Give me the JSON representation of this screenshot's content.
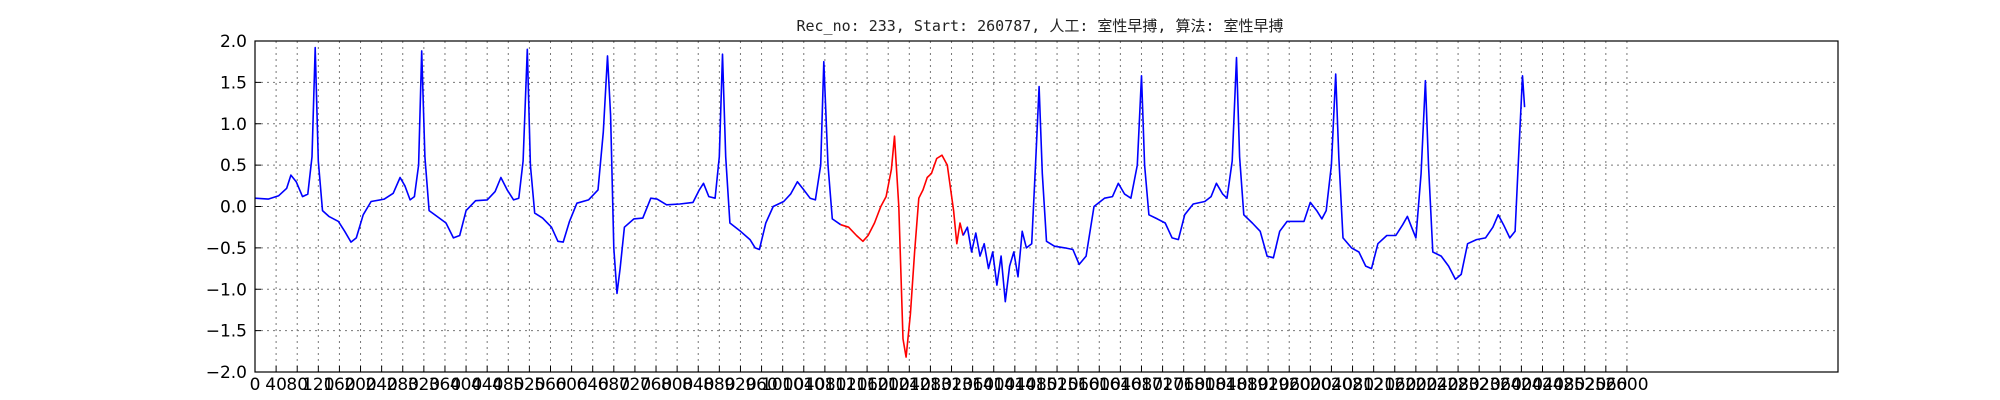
{
  "chart_data": {
    "type": "line",
    "title": "Rec_no: 233, Start: 260787, 人工: 室性早搏, 算法: 室性早搏",
    "xlabel": "",
    "ylabel": "",
    "xlim": [
      0,
      3000
    ],
    "ylim": [
      -2.0,
      2.0
    ],
    "grid": true,
    "x_tick_values": [
      0,
      40,
      80,
      120,
      160,
      200,
      240,
      280,
      320,
      360,
      400,
      440,
      480,
      520,
      560,
      600,
      640,
      680,
      720,
      760,
      800,
      840,
      880,
      920,
      960,
      1000,
      1040,
      1080,
      1120,
      1160,
      1200,
      1240,
      1280,
      1320,
      1360,
      1400,
      1440,
      1480,
      1520,
      1560,
      1600,
      1640,
      1680,
      1720,
      1760,
      1800,
      1840,
      1880,
      1920,
      1960,
      2000,
      2040,
      2080,
      2120,
      2160,
      2200,
      2240,
      2280,
      2320,
      2360,
      2400,
      2440,
      2480,
      2520,
      2560,
      2600
    ],
    "y_ticks": [
      2.0,
      1.5,
      1.0,
      0.5,
      0.0,
      -0.5,
      -1.0,
      -1.5,
      -2.0
    ],
    "y_tick_labels": [
      "2.0",
      "1.5",
      "1.0",
      "0.5",
      "0.0",
      "−0.5",
      "−1.0",
      "−1.5",
      "−2.0"
    ],
    "series": [
      {
        "color": "#0000ff",
        "points": [
          [
            0,
            0.1
          ],
          [
            25,
            0.09
          ],
          [
            45,
            0.13
          ],
          [
            60,
            0.22
          ],
          [
            68,
            0.38
          ],
          [
            78,
            0.3
          ],
          [
            90,
            0.12
          ],
          [
            100,
            0.15
          ],
          [
            108,
            0.6
          ],
          [
            114,
            1.92
          ],
          [
            120,
            0.55
          ],
          [
            128,
            -0.05
          ],
          [
            140,
            -0.12
          ],
          [
            158,
            -0.18
          ],
          [
            170,
            -0.3
          ],
          [
            182,
            -0.43
          ],
          [
            192,
            -0.38
          ],
          [
            205,
            -0.1
          ],
          [
            220,
            0.06
          ],
          [
            245,
            0.09
          ],
          [
            262,
            0.16
          ],
          [
            275,
            0.35
          ],
          [
            284,
            0.25
          ],
          [
            294,
            0.08
          ],
          [
            302,
            0.12
          ],
          [
            310,
            0.5
          ],
          [
            316,
            1.88
          ],
          [
            322,
            0.6
          ],
          [
            330,
            -0.05
          ],
          [
            345,
            -0.12
          ],
          [
            362,
            -0.2
          ],
          [
            376,
            -0.38
          ],
          [
            388,
            -0.35
          ],
          [
            400,
            -0.05
          ],
          [
            418,
            0.07
          ],
          [
            440,
            0.08
          ],
          [
            455,
            0.18
          ],
          [
            466,
            0.35
          ],
          [
            478,
            0.2
          ],
          [
            490,
            0.08
          ],
          [
            500,
            0.1
          ],
          [
            508,
            0.55
          ],
          [
            516,
            1.9
          ],
          [
            522,
            0.5
          ],
          [
            530,
            -0.08
          ],
          [
            545,
            -0.14
          ],
          [
            562,
            -0.25
          ],
          [
            574,
            -0.42
          ],
          [
            584,
            -0.43
          ],
          [
            596,
            -0.18
          ],
          [
            610,
            0.04
          ],
          [
            632,
            0.08
          ],
          [
            650,
            0.2
          ],
          [
            660,
            0.9
          ],
          [
            668,
            1.82
          ],
          [
            674,
            1.1
          ],
          [
            680,
            -0.5
          ],
          [
            686,
            -1.05
          ],
          [
            692,
            -0.75
          ],
          [
            700,
            -0.25
          ],
          [
            718,
            -0.15
          ],
          [
            735,
            -0.14
          ],
          [
            750,
            0.1
          ],
          [
            762,
            0.09
          ],
          [
            780,
            0.02
          ],
          [
            805,
            0.03
          ],
          [
            830,
            0.05
          ],
          [
            842,
            0.2
          ],
          [
            850,
            0.28
          ],
          [
            860,
            0.12
          ],
          [
            872,
            0.1
          ],
          [
            880,
            0.6
          ],
          [
            886,
            1.84
          ],
          [
            892,
            0.6
          ],
          [
            900,
            -0.2
          ],
          [
            920,
            -0.3
          ],
          [
            938,
            -0.4
          ],
          [
            948,
            -0.5
          ],
          [
            956,
            -0.52
          ],
          [
            968,
            -0.2
          ],
          [
            982,
            0.0
          ],
          [
            1002,
            0.06
          ],
          [
            1015,
            0.15
          ],
          [
            1028,
            0.3
          ],
          [
            1040,
            0.2
          ],
          [
            1052,
            0.1
          ],
          [
            1062,
            0.08
          ],
          [
            1072,
            0.5
          ],
          [
            1078,
            1.75
          ],
          [
            1086,
            0.5
          ],
          [
            1094,
            -0.15
          ],
          [
            1110,
            -0.22
          ]
        ]
      },
      {
        "color": "#ff0000",
        "points": [
          [
            1110,
            -0.22
          ],
          [
            1125,
            -0.25
          ],
          [
            1140,
            -0.35
          ],
          [
            1152,
            -0.42
          ],
          [
            1162,
            -0.35
          ],
          [
            1174,
            -0.2
          ],
          [
            1186,
            0.0
          ],
          [
            1196,
            0.12
          ],
          [
            1206,
            0.45
          ],
          [
            1212,
            0.85
          ],
          [
            1220,
            0.0
          ],
          [
            1228,
            -1.6
          ],
          [
            1234,
            -1.82
          ],
          [
            1242,
            -1.3
          ],
          [
            1250,
            -0.55
          ],
          [
            1258,
            0.1
          ],
          [
            1266,
            0.2
          ],
          [
            1274,
            0.35
          ],
          [
            1282,
            0.4
          ],
          [
            1292,
            0.58
          ],
          [
            1302,
            0.62
          ],
          [
            1312,
            0.5
          ],
          [
            1318,
            0.22
          ],
          [
            1324,
            -0.05
          ],
          [
            1330,
            -0.45
          ],
          [
            1336,
            -0.2
          ],
          [
            1342,
            -0.35
          ]
        ]
      },
      {
        "color": "#0000ff",
        "points": [
          [
            1342,
            -0.35
          ],
          [
            1350,
            -0.25
          ],
          [
            1358,
            -0.55
          ],
          [
            1366,
            -0.32
          ],
          [
            1374,
            -0.6
          ],
          [
            1382,
            -0.45
          ],
          [
            1390,
            -0.75
          ],
          [
            1398,
            -0.55
          ],
          [
            1406,
            -0.95
          ],
          [
            1414,
            -0.6
          ],
          [
            1422,
            -1.15
          ],
          [
            1430,
            -0.72
          ],
          [
            1438,
            -0.55
          ],
          [
            1446,
            -0.85
          ],
          [
            1454,
            -0.3
          ],
          [
            1462,
            -0.5
          ],
          [
            1472,
            -0.45
          ],
          [
            1480,
            0.6
          ],
          [
            1486,
            1.45
          ],
          [
            1492,
            0.4
          ],
          [
            1500,
            -0.42
          ],
          [
            1515,
            -0.48
          ],
          [
            1535,
            -0.5
          ],
          [
            1550,
            -0.52
          ],
          [
            1562,
            -0.7
          ],
          [
            1575,
            -0.6
          ],
          [
            1590,
            0.0
          ],
          [
            1610,
            0.1
          ],
          [
            1625,
            0.12
          ],
          [
            1636,
            0.28
          ],
          [
            1648,
            0.15
          ],
          [
            1660,
            0.1
          ],
          [
            1672,
            0.5
          ],
          [
            1680,
            1.58
          ],
          [
            1686,
            0.5
          ],
          [
            1694,
            -0.1
          ],
          [
            1710,
            -0.15
          ],
          [
            1725,
            -0.2
          ],
          [
            1738,
            -0.38
          ],
          [
            1750,
            -0.4
          ],
          [
            1762,
            -0.1
          ],
          [
            1778,
            0.03
          ],
          [
            1800,
            0.06
          ],
          [
            1812,
            0.12
          ],
          [
            1822,
            0.28
          ],
          [
            1834,
            0.15
          ],
          [
            1842,
            0.1
          ],
          [
            1852,
            0.55
          ],
          [
            1860,
            1.8
          ],
          [
            1866,
            0.6
          ],
          [
            1874,
            -0.1
          ],
          [
            1890,
            -0.2
          ],
          [
            1905,
            -0.3
          ],
          [
            1918,
            -0.6
          ],
          [
            1930,
            -0.62
          ],
          [
            1942,
            -0.3
          ],
          [
            1956,
            -0.18
          ],
          [
            1972,
            -0.18
          ],
          [
            1988,
            -0.18
          ],
          [
            2000,
            0.05
          ],
          [
            2012,
            -0.05
          ],
          [
            2022,
            -0.15
          ],
          [
            2030,
            -0.05
          ],
          [
            2040,
            0.5
          ],
          [
            2048,
            1.6
          ],
          [
            2054,
            0.6
          ],
          [
            2062,
            -0.38
          ],
          [
            2078,
            -0.5
          ],
          [
            2092,
            -0.55
          ],
          [
            2105,
            -0.72
          ],
          [
            2116,
            -0.75
          ],
          [
            2128,
            -0.45
          ],
          [
            2145,
            -0.35
          ],
          [
            2162,
            -0.35
          ],
          [
            2175,
            -0.22
          ],
          [
            2184,
            -0.12
          ],
          [
            2192,
            -0.25
          ],
          [
            2200,
            -0.38
          ],
          [
            2210,
            0.4
          ],
          [
            2218,
            1.52
          ],
          [
            2224,
            0.5
          ],
          [
            2232,
            -0.55
          ],
          [
            2248,
            -0.6
          ],
          [
            2262,
            -0.72
          ],
          [
            2275,
            -0.88
          ],
          [
            2286,
            -0.82
          ],
          [
            2298,
            -0.45
          ],
          [
            2315,
            -0.4
          ],
          [
            2332,
            -0.38
          ],
          [
            2346,
            -0.25
          ],
          [
            2356,
            -0.1
          ],
          [
            2366,
            -0.22
          ],
          [
            2378,
            -0.38
          ],
          [
            2388,
            -0.3
          ],
          [
            2394,
            0.5
          ],
          [
            2402,
            1.58
          ],
          [
            2406,
            1.2
          ]
        ]
      }
    ]
  }
}
